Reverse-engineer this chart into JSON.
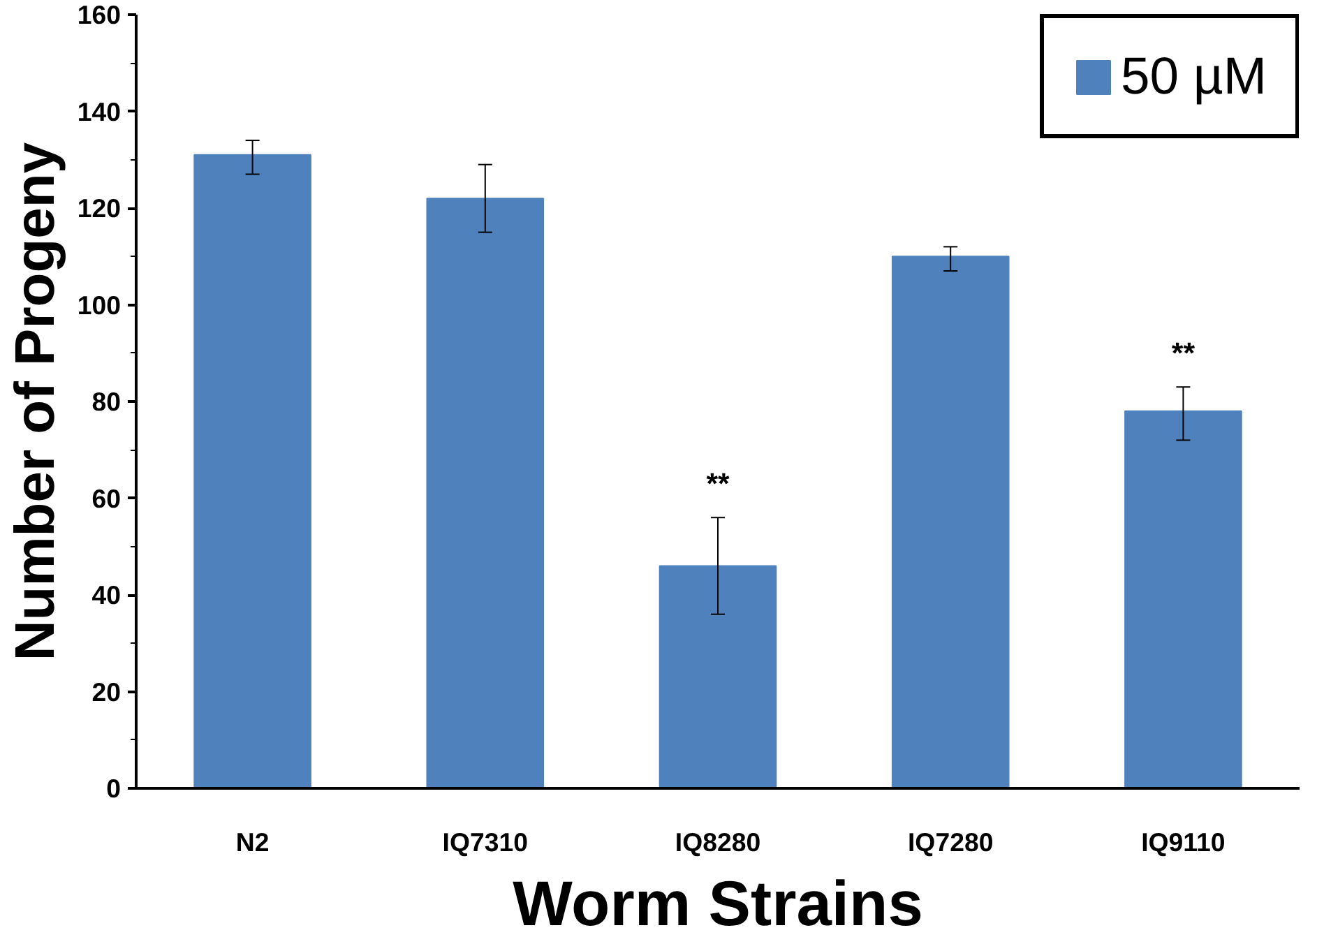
{
  "chart_data": {
    "type": "bar",
    "xlabel": "Worm Strains",
    "ylabel": "Number of Progeny",
    "categories": [
      "N2",
      "IQ7310",
      "IQ8280",
      "IQ7280",
      "IQ9110"
    ],
    "series": [
      {
        "name": "50 µM",
        "color": "#4f81bd",
        "values": [
          131,
          122,
          46,
          110,
          78
        ],
        "errors": [
          [
            127,
            134
          ],
          [
            115,
            129
          ],
          [
            36,
            56
          ],
          [
            107,
            112
          ],
          [
            72,
            83
          ]
        ]
      }
    ],
    "ylim": [
      0,
      160
    ],
    "yticks": [
      0,
      20,
      40,
      60,
      80,
      100,
      120,
      140,
      160
    ],
    "annotations": [
      {
        "text": "**",
        "x": "IQ8280",
        "y": 56
      },
      {
        "text": "**",
        "x": "IQ9110",
        "y": 83
      }
    ],
    "grid": false,
    "legend": "top right"
  }
}
